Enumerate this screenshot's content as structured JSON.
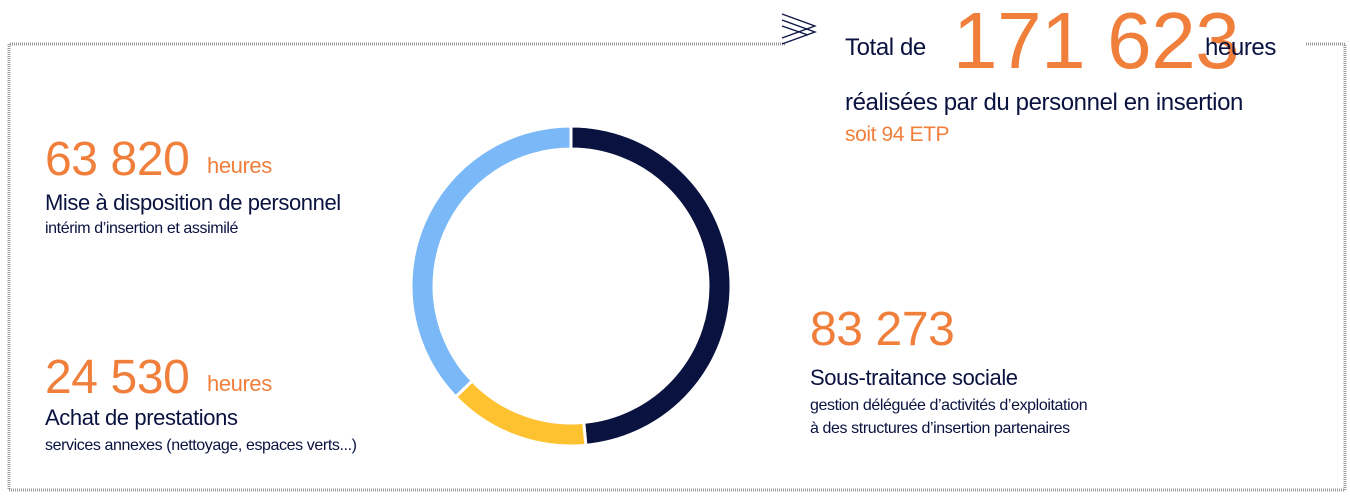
{
  "chart_data": {
    "type": "donut",
    "header": {
      "prefix": "Total de",
      "total": "171 623",
      "unit": "heures",
      "line": "réalisées par du personnel en insertion",
      "sub": "soit 94 ETP"
    },
    "categories": [
      "Sous-traitance sociale",
      "Achat de prestations",
      "Mise à disposition de personnel"
    ],
    "descriptions": [
      [
        "gestion déléguée d’activités d’exploitation",
        "à des structures d’insertion partenaires"
      ],
      [
        "services annexes (nettoyage, espaces verts...)"
      ],
      [
        "intérim d’insertion et assimilé"
      ]
    ],
    "values": [
      83273,
      24530,
      63820
    ],
    "value_labels": [
      "83 273",
      "24 530",
      "63 820"
    ],
    "colors": [
      "#0a1240",
      "#fec12f",
      "#7ab8f7"
    ]
  }
}
